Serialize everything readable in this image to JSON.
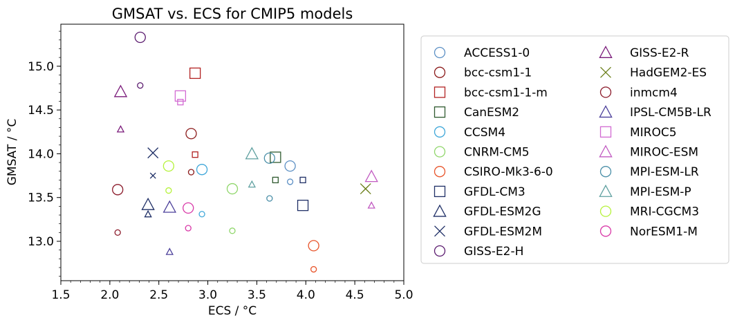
{
  "chart_data": {
    "type": "scatter",
    "title": "GMSAT vs. ECS for CMIP5 models",
    "xlabel": "ECS / °C",
    "ylabel": "GMSAT / °C",
    "xlim": [
      1.5,
      5.0
    ],
    "ylim": [
      12.55,
      15.48
    ],
    "xticks": [
      "1.5",
      "2.0",
      "2.5",
      "3.0",
      "3.5",
      "4.0",
      "4.5",
      "5.0"
    ],
    "xtick_values": [
      1.5,
      2.0,
      2.5,
      3.0,
      3.5,
      4.0,
      4.5,
      5.0
    ],
    "yticks": [
      "13.0",
      "13.5",
      "14.0",
      "14.5",
      "15.0"
    ],
    "ytick_values": [
      13.0,
      13.5,
      14.0,
      14.5,
      15.0
    ],
    "grid": false,
    "legend_position": "right",
    "legend_columns": 2,
    "series": [
      {
        "name": "ACCESS1-0",
        "marker": "circle",
        "color": "#5b8fc4",
        "points": [
          {
            "x": 3.84,
            "y": 13.86,
            "size": "large"
          },
          {
            "x": 3.84,
            "y": 13.68,
            "size": "small"
          }
        ]
      },
      {
        "name": "bcc-csm1-1",
        "marker": "circle",
        "color": "#8b1a1a",
        "points": [
          {
            "x": 2.83,
            "y": 14.23,
            "size": "large"
          },
          {
            "x": 2.83,
            "y": 13.79,
            "size": "small"
          }
        ]
      },
      {
        "name": "bcc-csm1-1-m",
        "marker": "square",
        "color": "#b22222",
        "points": [
          {
            "x": 2.87,
            "y": 14.92,
            "size": "large"
          },
          {
            "x": 2.87,
            "y": 13.99,
            "size": "small"
          }
        ]
      },
      {
        "name": "CanESM2",
        "marker": "square",
        "color": "#2f5a2f",
        "points": [
          {
            "x": 3.69,
            "y": 13.96,
            "size": "large"
          },
          {
            "x": 3.69,
            "y": 13.7,
            "size": "small"
          }
        ]
      },
      {
        "name": "CCSM4",
        "marker": "circle",
        "color": "#3fa7d9",
        "points": [
          {
            "x": 2.94,
            "y": 13.82,
            "size": "large"
          },
          {
            "x": 2.94,
            "y": 13.31,
            "size": "small"
          }
        ]
      },
      {
        "name": "CNRM-CM5",
        "marker": "circle",
        "color": "#8fd66a",
        "points": [
          {
            "x": 3.25,
            "y": 13.6,
            "size": "large"
          },
          {
            "x": 3.25,
            "y": 13.12,
            "size": "small"
          }
        ]
      },
      {
        "name": "CSIRO-Mk3-6-0",
        "marker": "circle",
        "color": "#e8542a",
        "points": [
          {
            "x": 4.08,
            "y": 12.95,
            "size": "large"
          },
          {
            "x": 4.08,
            "y": 12.68,
            "size": "small"
          }
        ]
      },
      {
        "name": "GFDL-CM3",
        "marker": "square",
        "color": "#1f2f66",
        "points": [
          {
            "x": 3.97,
            "y": 13.41,
            "size": "large"
          },
          {
            "x": 3.97,
            "y": 13.7,
            "size": "small"
          }
        ]
      },
      {
        "name": "GFDL-ESM2G",
        "marker": "triangle",
        "color": "#1f2f66",
        "points": [
          {
            "x": 2.39,
            "y": 13.42,
            "size": "large"
          },
          {
            "x": 2.39,
            "y": 13.31,
            "size": "small"
          }
        ]
      },
      {
        "name": "GFDL-ESM2M",
        "marker": "x",
        "color": "#1f2f66",
        "points": [
          {
            "x": 2.44,
            "y": 14.01,
            "size": "large"
          },
          {
            "x": 2.44,
            "y": 13.75,
            "size": "small"
          }
        ]
      },
      {
        "name": "GISS-E2-H",
        "marker": "circle",
        "color": "#5a1a6e",
        "points": [
          {
            "x": 2.31,
            "y": 15.33,
            "size": "large"
          },
          {
            "x": 2.31,
            "y": 14.78,
            "size": "small"
          }
        ]
      },
      {
        "name": "GISS-E2-R",
        "marker": "triangle",
        "color": "#7a1a7a",
        "points": [
          {
            "x": 2.11,
            "y": 14.71,
            "size": "large"
          },
          {
            "x": 2.11,
            "y": 14.28,
            "size": "small"
          }
        ]
      },
      {
        "name": "HadGEM2-ES",
        "marker": "x",
        "color": "#6b7f1a",
        "points": [
          {
            "x": 4.61,
            "y": 13.6,
            "size": "large"
          },
          {
            "x": 4.61,
            "y": 13.6,
            "size": "small"
          }
        ]
      },
      {
        "name": "inmcm4",
        "marker": "circle",
        "color": "#8b1a2a",
        "points": [
          {
            "x": 2.08,
            "y": 13.59,
            "size": "large"
          },
          {
            "x": 2.08,
            "y": 13.1,
            "size": "small"
          }
        ]
      },
      {
        "name": "IPSL-CM5B-LR",
        "marker": "triangle",
        "color": "#4b3f9a",
        "points": [
          {
            "x": 2.61,
            "y": 13.39,
            "size": "large"
          },
          {
            "x": 2.61,
            "y": 12.88,
            "size": "small"
          }
        ]
      },
      {
        "name": "MIROC5",
        "marker": "square",
        "color": "#d26ad2",
        "points": [
          {
            "x": 2.72,
            "y": 14.66,
            "size": "large"
          },
          {
            "x": 2.72,
            "y": 14.59,
            "size": "small"
          }
        ]
      },
      {
        "name": "MIROC-ESM",
        "marker": "triangle",
        "color": "#c15ac1",
        "points": [
          {
            "x": 4.67,
            "y": 13.74,
            "size": "large"
          },
          {
            "x": 4.67,
            "y": 13.41,
            "size": "small"
          }
        ]
      },
      {
        "name": "MPI-ESM-LR",
        "marker": "circle",
        "color": "#4a8fa8",
        "points": [
          {
            "x": 3.63,
            "y": 13.95,
            "size": "large"
          },
          {
            "x": 3.63,
            "y": 13.49,
            "size": "small"
          }
        ]
      },
      {
        "name": "MPI-ESM-P",
        "marker": "triangle",
        "color": "#5fa0a0",
        "points": [
          {
            "x": 3.45,
            "y": 14.0,
            "size": "large"
          },
          {
            "x": 3.45,
            "y": 13.65,
            "size": "small"
          }
        ]
      },
      {
        "name": "MRI-CGCM3",
        "marker": "circle",
        "color": "#b5f23a",
        "points": [
          {
            "x": 2.6,
            "y": 13.86,
            "size": "large"
          },
          {
            "x": 2.6,
            "y": 13.58,
            "size": "small"
          }
        ]
      },
      {
        "name": "NorESM1-M",
        "marker": "circle",
        "color": "#d93aa8",
        "points": [
          {
            "x": 2.8,
            "y": 13.38,
            "size": "large"
          },
          {
            "x": 2.8,
            "y": 13.15,
            "size": "small"
          }
        ]
      }
    ]
  }
}
